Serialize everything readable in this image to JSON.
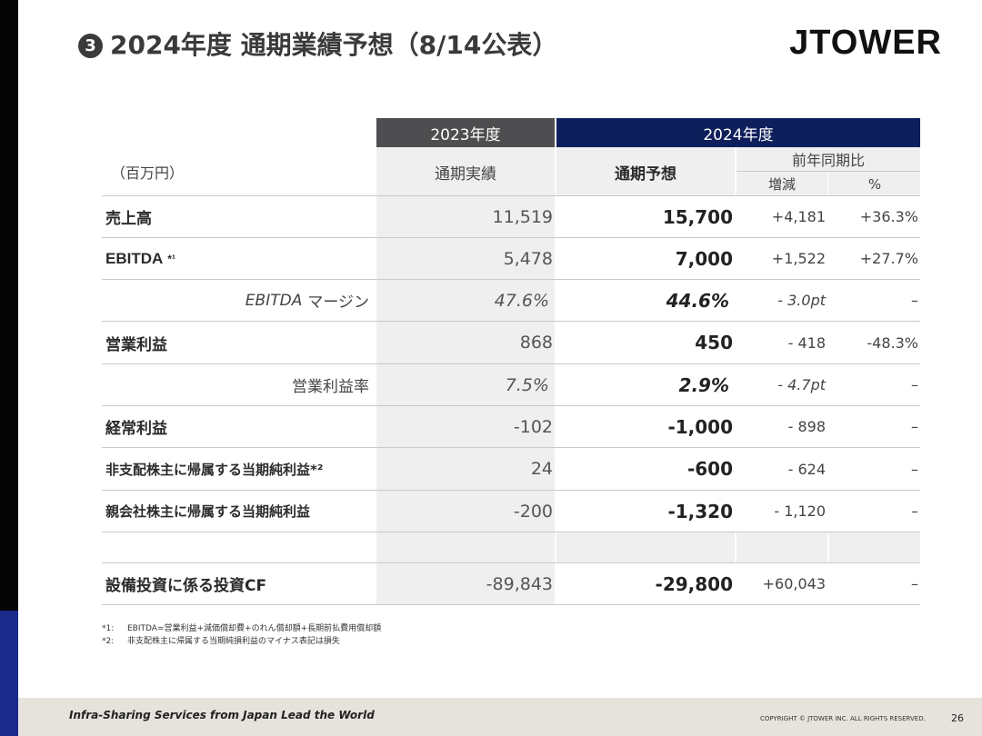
{
  "header": {
    "number_badge": "3",
    "title": "2024年度 通期業績予想（8/14公表）",
    "logo": "JTOWER"
  },
  "table": {
    "col_2023": "2023年度",
    "col_2024": "2024年度",
    "unit": "（百万円）",
    "sub_2023": "通期実績",
    "sub_2024": "通期予想",
    "yoy": "前年同期比",
    "change": "増減",
    "percent": "%",
    "rows": [
      {
        "label": "売上高",
        "v2023": "11,519",
        "v2024": "15,700",
        "change": "+4,181",
        "pct": "+36.3%"
      },
      {
        "label": "EBITDA",
        "label_note": "*¹",
        "v2023": "5,478",
        "v2024": "7,000",
        "change": "+1,522",
        "pct": "+27.7%"
      },
      {
        "label_italic": "EBITDA",
        "label": "マージン",
        "v2023": "47.6%",
        "v2024": "44.6%",
        "change": "- 3.0pt",
        "pct": "–"
      },
      {
        "label": "営業利益",
        "v2023": "868",
        "v2024": "450",
        "change": "- 418",
        "pct": "-48.3%"
      },
      {
        "label": "営業利益率",
        "v2023": "7.5%",
        "v2024": "2.9%",
        "change": "- 4.7pt",
        "pct": "–"
      },
      {
        "label": "経常利益",
        "v2023": "-102",
        "v2024": "-1,000",
        "change": "- 898",
        "pct": "–"
      },
      {
        "label": "非支配株主に帰属する当期純利益*²",
        "v2023": "24",
        "v2024": "-600",
        "change": "- 624",
        "pct": "–"
      },
      {
        "label": "親会社株主に帰属する当期純利益",
        "v2023": "-200",
        "v2024": "-1,320",
        "change": "- 1,120",
        "pct": "–"
      },
      {
        "label": "設備投資に係る投資CF",
        "v2023": "-89,843",
        "v2024": "-29,800",
        "change": "+60,043",
        "pct": "–"
      }
    ]
  },
  "notes": [
    {
      "mark": "*1:",
      "text": "EBITDA=営業利益+減価償却費+のれん償却額+長期前払費用償却額"
    },
    {
      "mark": "*2:",
      "text": "非支配株主に帰属する当期純損利益のマイナス表記は損失"
    }
  ],
  "footer": {
    "tagline": "Infra-Sharing Services from Japan Lead the World",
    "copyright": "COPYRIGHT © JTOWER INC. ALL RIGHTS RESERVED.",
    "page": "26"
  }
}
